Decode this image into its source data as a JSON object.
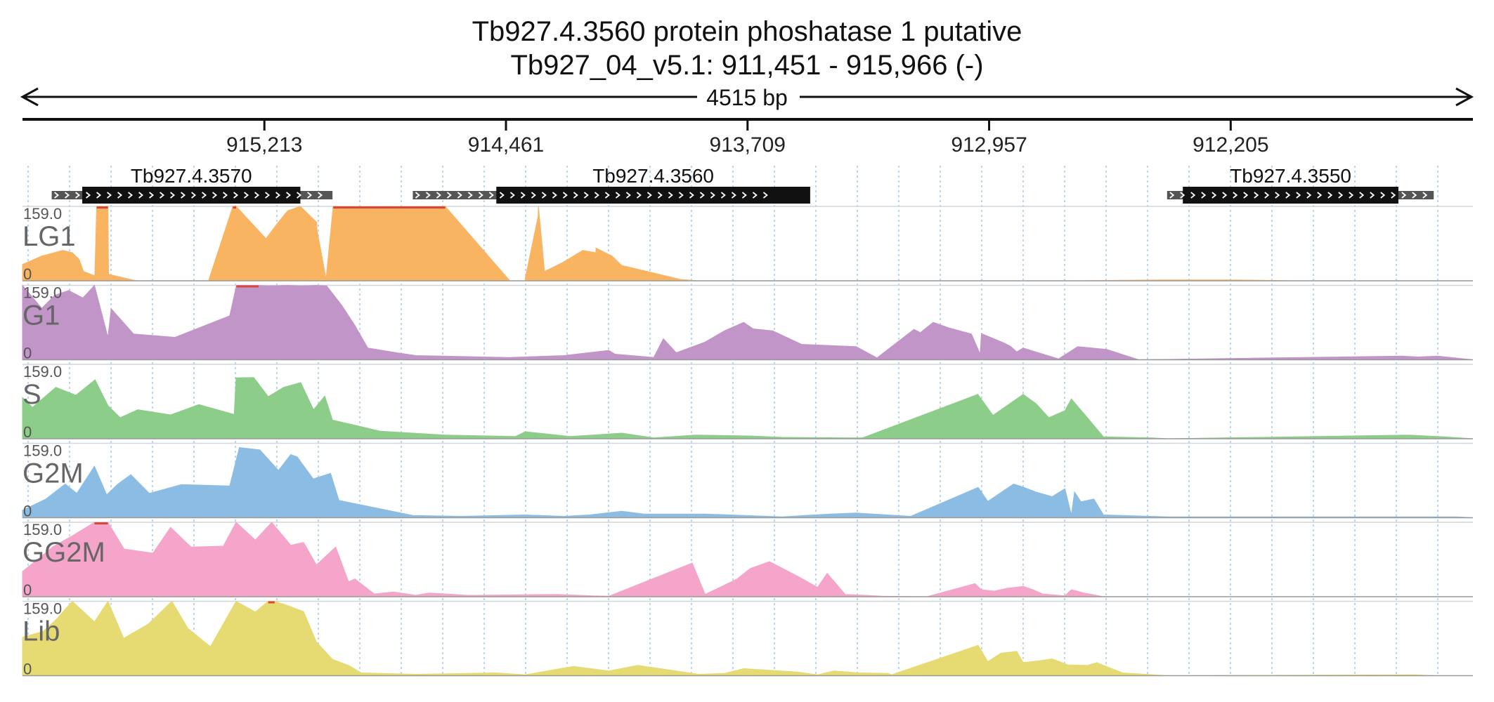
{
  "header": {
    "title_line1": "Tb927.4.3560  protein phoshatase 1  putative",
    "title_line2": "Tb927_04_v5.1: 911,451 - 915,966 (-)",
    "span_label": "4515 bp"
  },
  "chart_data": {
    "type": "area",
    "region": {
      "chromosome": "Tb927_04_v5.1",
      "start": 911451,
      "end": 915966,
      "strand": "-"
    },
    "x_axis": {
      "reversed": true,
      "ticks": [
        {
          "pos": 915213,
          "label": "915,213"
        },
        {
          "pos": 914461,
          "label": "914,461"
        },
        {
          "pos": 913709,
          "label": "913,709"
        },
        {
          "pos": 912957,
          "label": "912,957"
        },
        {
          "pos": 912205,
          "label": "912,205"
        }
      ]
    },
    "genes": [
      {
        "name": "Tb927.4.3570",
        "utr": [
          915875,
          915001
        ],
        "cds": [
          915780,
          915101
        ]
      },
      {
        "name": "Tb927.4.3560",
        "utr": [
          914751,
          913639
        ],
        "cds": [
          914491,
          913514
        ]
      },
      {
        "name": "Tb927.4.3550",
        "utr": [
          912403,
          911573
        ],
        "cds": [
          912354,
          911683
        ]
      }
    ],
    "tracks": [
      {
        "name": "LG1",
        "color": "#f9b462",
        "ymax_label": "159.0",
        "ymin_label": "0",
        "ylim": [
          0,
          159
        ],
        "x": [
          915966,
          915906,
          915840,
          915811,
          915790,
          915776,
          915742,
          915741,
          915735,
          915700,
          915698,
          915611,
          915508,
          915387,
          915311,
          915301,
          915208,
          915170,
          915140,
          915101,
          915050,
          915049,
          915021,
          914999,
          914650,
          914449,
          914448,
          914402,
          914401,
          914401,
          914361,
          914360,
          914341,
          914282,
          914222,
          914181,
          914181,
          914131,
          914101,
          914021,
          913918,
          913866,
          913631,
          913331,
          913001,
          912701,
          912401,
          912201,
          912001,
          911800,
          911451
        ],
        "y": [
          35,
          53,
          65,
          60,
          46,
          20,
          11,
          9,
          159,
          159,
          14,
          0,
          0,
          0,
          159,
          159,
          90,
          125,
          150,
          159,
          125,
          108,
          4,
          159,
          159,
          0,
          0,
          0,
          4,
          5,
          137,
          159,
          20,
          40,
          65,
          60,
          70,
          53,
          33,
          20,
          3,
          0,
          0,
          0,
          0,
          0,
          2,
          2,
          0,
          0,
          0
        ],
        "series_note": ""
      },
      {
        "name": "G1",
        "color": "#c295c8",
        "ymax_label": "159.0",
        "ymin_label": "0",
        "ylim": [
          0,
          159
        ],
        "x": [
          915966,
          915906,
          915866,
          915822,
          915778,
          915742,
          915700,
          915690,
          915620,
          915580,
          915491,
          915321,
          915300,
          915261,
          915231,
          915200,
          915141,
          915101,
          915049,
          915019,
          914971,
          914931,
          914891,
          914801,
          914741,
          914451,
          914281,
          914141,
          914121,
          914001,
          913971,
          913931,
          913841,
          913781,
          913721,
          913691,
          913631,
          913541,
          913371,
          913306,
          913191,
          913171,
          913131,
          913081,
          913012,
          912985,
          912981,
          912911,
          912891,
          912871,
          912851,
          912741,
          912681,
          912591,
          912491,
          911671,
          911621,
          911561,
          911451
        ],
        "y": [
          159,
          110,
          138,
          148,
          132,
          159,
          48,
          109,
          55,
          53,
          48,
          94,
          159,
          160,
          159,
          158,
          159,
          158,
          159,
          158,
          115,
          73,
          25,
          15,
          9,
          5,
          9,
          20,
          12,
          5,
          45,
          15,
          38,
          62,
          80,
          66,
          62,
          33,
          28,
          4,
          65,
          58,
          80,
          68,
          55,
          12,
          56,
          36,
          29,
          17,
          25,
          2,
          28,
          22,
          0,
          8,
          6,
          8,
          0
        ],
        "series_note": ""
      },
      {
        "name": "S",
        "color": "#8ccd89",
        "ymax_label": "159.0",
        "ymin_label": "0",
        "ylim": [
          0,
          159
        ],
        "x": [
          915966,
          915935,
          915862,
          915800,
          915740,
          915700,
          915662,
          915607,
          915505,
          915417,
          915307,
          915301,
          915246,
          915201,
          915153,
          915100,
          915060,
          915025,
          915001,
          914851,
          914651,
          914431,
          914401,
          914261,
          914191,
          914101,
          914001,
          913871,
          913701,
          913601,
          913381,
          913351,
          912992,
          912945,
          912851,
          912811,
          912771,
          912721,
          912701,
          912661,
          912601,
          912451,
          912401,
          911651,
          911541,
          911451
        ],
        "y": [
          88,
          67,
          110,
          93,
          126,
          71,
          45,
          62,
          51,
          73,
          52,
          130,
          131,
          90,
          110,
          120,
          62,
          91,
          40,
          16,
          8,
          5,
          15,
          5,
          8,
          12,
          2,
          8,
          6,
          3,
          2,
          2,
          95,
          50,
          95,
          75,
          45,
          60,
          85,
          53,
          4,
          2,
          0,
          8,
          4,
          0
        ],
        "series_note": ""
      },
      {
        "name": "G2M",
        "color": "#8bbde4",
        "ymax_label": "159.0",
        "ymin_label": "0",
        "ylim": [
          0,
          159
        ],
        "x": [
          915966,
          915893,
          915833,
          915797,
          915742,
          915704,
          915669,
          915629,
          915571,
          915471,
          915321,
          915291,
          915227,
          915169,
          915131,
          915111,
          915061,
          915007,
          914981,
          914751,
          914601,
          914401,
          914281,
          914201,
          914101,
          914031,
          913841,
          913601,
          913501,
          913451,
          913371,
          913201,
          912991,
          912961,
          912881,
          912861,
          912811,
          912761,
          912721,
          912701,
          912691,
          912671,
          912631,
          912601,
          912401,
          911631,
          911501,
          911451
        ],
        "y": [
          16,
          40,
          72,
          52,
          110,
          49,
          72,
          92,
          52,
          71,
          68,
          150,
          145,
          101,
          135,
          130,
          83,
          95,
          37,
          5,
          3,
          6,
          3,
          6,
          14,
          8,
          8,
          2,
          6,
          8,
          10,
          3,
          65,
          35,
          72,
          68,
          55,
          45,
          62,
          6,
          55,
          34,
          40,
          6,
          2,
          2,
          2,
          0
        ],
        "series_note": ""
      },
      {
        "name": "GG2M",
        "color": "#f4a5c9",
        "ymax_label": "159.0",
        "ymin_label": "0",
        "ylim": [
          0,
          159
        ],
        "x": [
          915966,
          915911,
          915871,
          915811,
          915742,
          915700,
          915650,
          915560,
          915505,
          915441,
          915341,
          915301,
          915241,
          915190,
          915131,
          915091,
          915051,
          914991,
          914951,
          914931,
          914871,
          914811,
          914741,
          914701,
          914581,
          914561,
          914301,
          914231,
          914191,
          914141,
          913881,
          913841,
          913741,
          913701,
          913641,
          913551,
          913491,
          913461,
          913405,
          913341,
          913291,
          913151,
          913001,
          912981,
          912941,
          912901,
          912851,
          912821,
          912791,
          912721,
          912701,
          912661,
          912601,
          911451
        ],
        "y": [
          54,
          84,
          107,
          130,
          159,
          159,
          102,
          93,
          148,
          106,
          108,
          159,
          121,
          159,
          110,
          116,
          68,
          106,
          32,
          38,
          6,
          10,
          3,
          8,
          3,
          3,
          5,
          3,
          2,
          1,
          72,
          5,
          38,
          60,
          75,
          43,
          20,
          50,
          5,
          3,
          1,
          0,
          28,
          15,
          12,
          18,
          22,
          15,
          6,
          2,
          15,
          8,
          0,
          0
        ],
        "series_note": ""
      },
      {
        "name": "Lib",
        "color": "#e6da72",
        "ymax_label": "159.0",
        "ymin_label": "0",
        "ylim": [
          0,
          159
        ],
        "x": [
          915966,
          915901,
          915861,
          915811,
          915742,
          915700,
          915651,
          915575,
          915501,
          915451,
          915381,
          915301,
          915241,
          915201,
          915181,
          915141,
          915091,
          915051,
          915001,
          914951,
          914911,
          914741,
          914491,
          914401,
          914251,
          914141,
          914051,
          913931,
          913861,
          913781,
          913721,
          913651,
          913555,
          913491,
          913441,
          913361,
          913271,
          913261,
          912991,
          912961,
          912921,
          912871,
          912851,
          912801,
          912761,
          912711,
          912651,
          912621,
          912601,
          912541,
          912401,
          911631,
          911571,
          911451
        ],
        "y": [
          82,
          95,
          120,
          159,
          115,
          159,
          80,
          110,
          159,
          101,
          62,
          159,
          136,
          159,
          159,
          150,
          137,
          72,
          35,
          22,
          6,
          3,
          6,
          2,
          20,
          10,
          22,
          10,
          3,
          5,
          15,
          12,
          8,
          2,
          10,
          6,
          5,
          2,
          65,
          30,
          48,
          52,
          28,
          32,
          36,
          23,
          22,
          28,
          22,
          6,
          0,
          2,
          0,
          0
        ],
        "series_note": ""
      }
    ],
    "grid": true,
    "legend": "track-labels-left"
  }
}
